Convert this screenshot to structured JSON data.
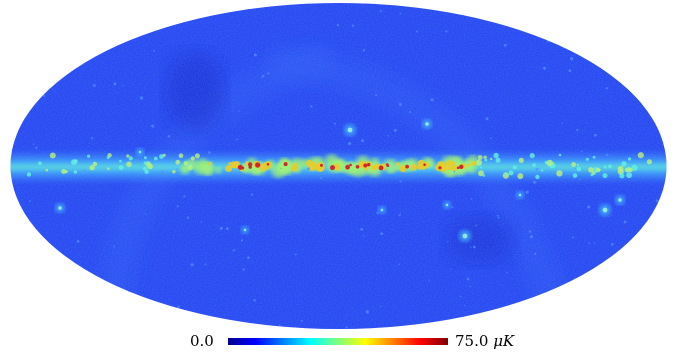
{
  "figure": {
    "projection": "mollweide",
    "colormap": "jet",
    "colors": {
      "background_fill": "#1e3cf0",
      "low": "#00008f",
      "mid": "#2fffd0",
      "high": "#ffd000",
      "max": "#800000"
    }
  },
  "colorbar": {
    "min_label": "0.0",
    "max_value": "75.0",
    "unit": "μK",
    "min": 0.0,
    "max": 75.0
  }
}
